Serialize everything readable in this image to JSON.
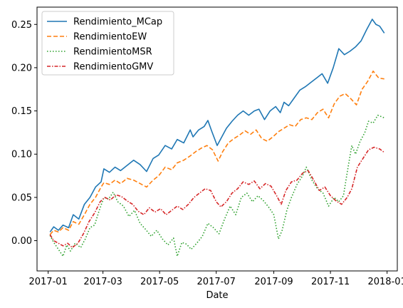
{
  "chart_data": {
    "type": "line",
    "xlabel": "Date",
    "ylabel": "",
    "xlim": [
      "2016-12-20",
      "2018-01-12"
    ],
    "ylim": [
      -0.035,
      0.27
    ],
    "x_ticks": [
      "2017-01",
      "2017-03",
      "2017-05",
      "2017-07",
      "2017-09",
      "2017-11",
      "2018-01"
    ],
    "y_ticks": [
      0.0,
      0.05,
      0.1,
      0.15,
      0.2,
      0.25
    ],
    "y_tick_labels": [
      "0.00",
      "0.05",
      "0.10",
      "0.15",
      "0.20",
      "0.25"
    ],
    "grid": false,
    "legend_position": "top-left",
    "series": [
      {
        "name": "Rendimiento_MCap",
        "color": "#1f77b4",
        "dash": "solid",
        "points": [
          [
            "2017-01-03",
            0.01
          ],
          [
            "2017-01-07",
            0.016
          ],
          [
            "2017-01-12",
            0.012
          ],
          [
            "2017-01-17",
            0.018
          ],
          [
            "2017-01-23",
            0.015
          ],
          [
            "2017-01-28",
            0.03
          ],
          [
            "2017-02-03",
            0.025
          ],
          [
            "2017-02-09",
            0.042
          ],
          [
            "2017-02-15",
            0.05
          ],
          [
            "2017-02-21",
            0.062
          ],
          [
            "2017-02-27",
            0.068
          ],
          [
            "2017-03-02",
            0.083
          ],
          [
            "2017-03-08",
            0.079
          ],
          [
            "2017-03-14",
            0.085
          ],
          [
            "2017-03-20",
            0.081
          ],
          [
            "2017-03-27",
            0.087
          ],
          [
            "2017-04-03",
            0.093
          ],
          [
            "2017-04-10",
            0.088
          ],
          [
            "2017-04-17",
            0.08
          ],
          [
            "2017-04-24",
            0.095
          ],
          [
            "2017-04-30",
            0.099
          ],
          [
            "2017-05-07",
            0.11
          ],
          [
            "2017-05-14",
            0.106
          ],
          [
            "2017-05-20",
            0.117
          ],
          [
            "2017-05-27",
            0.113
          ],
          [
            "2017-06-03",
            0.128
          ],
          [
            "2017-06-06",
            0.12
          ],
          [
            "2017-06-12",
            0.128
          ],
          [
            "2017-06-18",
            0.132
          ],
          [
            "2017-06-22",
            0.139
          ],
          [
            "2017-06-26",
            0.127
          ],
          [
            "2017-07-02",
            0.11
          ],
          [
            "2017-07-06",
            0.118
          ],
          [
            "2017-07-12",
            0.13
          ],
          [
            "2017-07-18",
            0.138
          ],
          [
            "2017-07-24",
            0.145
          ],
          [
            "2017-07-30",
            0.15
          ],
          [
            "2017-08-05",
            0.145
          ],
          [
            "2017-08-11",
            0.15
          ],
          [
            "2017-08-16",
            0.152
          ],
          [
            "2017-08-22",
            0.14
          ],
          [
            "2017-08-28",
            0.15
          ],
          [
            "2017-09-03",
            0.155
          ],
          [
            "2017-09-08",
            0.148
          ],
          [
            "2017-09-12",
            0.16
          ],
          [
            "2017-09-17",
            0.156
          ],
          [
            "2017-09-23",
            0.165
          ],
          [
            "2017-09-29",
            0.174
          ],
          [
            "2017-10-05",
            0.178
          ],
          [
            "2017-10-11",
            0.183
          ],
          [
            "2017-10-17",
            0.188
          ],
          [
            "2017-10-23",
            0.193
          ],
          [
            "2017-10-29",
            0.182
          ],
          [
            "2017-11-04",
            0.2
          ],
          [
            "2017-11-10",
            0.222
          ],
          [
            "2017-11-16",
            0.215
          ],
          [
            "2017-11-22",
            0.219
          ],
          [
            "2017-11-28",
            0.224
          ],
          [
            "2017-12-04",
            0.231
          ],
          [
            "2017-12-10",
            0.244
          ],
          [
            "2017-12-16",
            0.256
          ],
          [
            "2017-12-20",
            0.25
          ],
          [
            "2017-12-24",
            0.248
          ],
          [
            "2017-12-29",
            0.24
          ]
        ]
      },
      {
        "name": "RendimientoEW",
        "color": "#ff7f0e",
        "dash": "dashed",
        "points": [
          [
            "2017-01-03",
            0.007
          ],
          [
            "2017-01-07",
            0.012
          ],
          [
            "2017-01-12",
            0.01
          ],
          [
            "2017-01-17",
            0.015
          ],
          [
            "2017-01-23",
            0.012
          ],
          [
            "2017-01-28",
            0.022
          ],
          [
            "2017-02-03",
            0.019
          ],
          [
            "2017-02-09",
            0.03
          ],
          [
            "2017-02-15",
            0.042
          ],
          [
            "2017-02-21",
            0.05
          ],
          [
            "2017-02-27",
            0.062
          ],
          [
            "2017-03-02",
            0.067
          ],
          [
            "2017-03-08",
            0.065
          ],
          [
            "2017-03-14",
            0.07
          ],
          [
            "2017-03-20",
            0.066
          ],
          [
            "2017-03-27",
            0.072
          ],
          [
            "2017-04-03",
            0.07
          ],
          [
            "2017-04-10",
            0.066
          ],
          [
            "2017-04-17",
            0.062
          ],
          [
            "2017-04-24",
            0.07
          ],
          [
            "2017-04-30",
            0.075
          ],
          [
            "2017-05-07",
            0.085
          ],
          [
            "2017-05-14",
            0.082
          ],
          [
            "2017-05-20",
            0.09
          ],
          [
            "2017-05-27",
            0.093
          ],
          [
            "2017-06-03",
            0.098
          ],
          [
            "2017-06-09",
            0.103
          ],
          [
            "2017-06-15",
            0.107
          ],
          [
            "2017-06-21",
            0.11
          ],
          [
            "2017-06-27",
            0.105
          ],
          [
            "2017-07-03",
            0.092
          ],
          [
            "2017-07-08",
            0.103
          ],
          [
            "2017-07-14",
            0.113
          ],
          [
            "2017-07-20",
            0.118
          ],
          [
            "2017-07-26",
            0.122
          ],
          [
            "2017-08-01",
            0.127
          ],
          [
            "2017-08-07",
            0.123
          ],
          [
            "2017-08-13",
            0.128
          ],
          [
            "2017-08-19",
            0.118
          ],
          [
            "2017-08-25",
            0.115
          ],
          [
            "2017-08-31",
            0.12
          ],
          [
            "2017-09-06",
            0.126
          ],
          [
            "2017-09-12",
            0.13
          ],
          [
            "2017-09-18",
            0.134
          ],
          [
            "2017-09-24",
            0.132
          ],
          [
            "2017-09-30",
            0.14
          ],
          [
            "2017-10-06",
            0.142
          ],
          [
            "2017-10-12",
            0.14
          ],
          [
            "2017-10-18",
            0.148
          ],
          [
            "2017-10-24",
            0.152
          ],
          [
            "2017-10-30",
            0.142
          ],
          [
            "2017-11-05",
            0.158
          ],
          [
            "2017-11-11",
            0.167
          ],
          [
            "2017-11-17",
            0.17
          ],
          [
            "2017-11-23",
            0.164
          ],
          [
            "2017-11-29",
            0.157
          ],
          [
            "2017-12-05",
            0.175
          ],
          [
            "2017-12-11",
            0.184
          ],
          [
            "2017-12-17",
            0.196
          ],
          [
            "2017-12-23",
            0.188
          ],
          [
            "2017-12-29",
            0.187
          ]
        ]
      },
      {
        "name": "RendimientoMSR",
        "color": "#2ca02c",
        "dash": "dotted",
        "points": [
          [
            "2017-01-03",
            0.006
          ],
          [
            "2017-01-07",
            -0.002
          ],
          [
            "2017-01-12",
            -0.01
          ],
          [
            "2017-01-17",
            -0.018
          ],
          [
            "2017-01-21",
            -0.005
          ],
          [
            "2017-01-25",
            -0.012
          ],
          [
            "2017-01-30",
            -0.003
          ],
          [
            "2017-02-05",
            -0.008
          ],
          [
            "2017-02-10",
            0.002
          ],
          [
            "2017-02-15",
            0.015
          ],
          [
            "2017-02-20",
            0.018
          ],
          [
            "2017-02-25",
            0.035
          ],
          [
            "2017-03-02",
            0.05
          ],
          [
            "2017-03-07",
            0.048
          ],
          [
            "2017-03-12",
            0.056
          ],
          [
            "2017-03-17",
            0.045
          ],
          [
            "2017-03-23",
            0.04
          ],
          [
            "2017-03-29",
            0.028
          ],
          [
            "2017-04-04",
            0.035
          ],
          [
            "2017-04-10",
            0.02
          ],
          [
            "2017-04-16",
            0.013
          ],
          [
            "2017-04-22",
            0.005
          ],
          [
            "2017-04-28",
            0.012
          ],
          [
            "2017-05-04",
            0.002
          ],
          [
            "2017-05-10",
            -0.005
          ],
          [
            "2017-05-16",
            0.003
          ],
          [
            "2017-05-20",
            -0.018
          ],
          [
            "2017-05-25",
            -0.002
          ],
          [
            "2017-05-30",
            -0.004
          ],
          [
            "2017-06-04",
            -0.01
          ],
          [
            "2017-06-10",
            -0.003
          ],
          [
            "2017-06-16",
            0.005
          ],
          [
            "2017-06-22",
            0.02
          ],
          [
            "2017-06-28",
            0.015
          ],
          [
            "2017-07-04",
            0.008
          ],
          [
            "2017-07-10",
            0.025
          ],
          [
            "2017-07-16",
            0.04
          ],
          [
            "2017-07-22",
            0.03
          ],
          [
            "2017-07-28",
            0.05
          ],
          [
            "2017-08-03",
            0.055
          ],
          [
            "2017-08-09",
            0.045
          ],
          [
            "2017-08-15",
            0.052
          ],
          [
            "2017-08-21",
            0.046
          ],
          [
            "2017-08-27",
            0.038
          ],
          [
            "2017-09-01",
            0.03
          ],
          [
            "2017-09-06",
            0.002
          ],
          [
            "2017-09-10",
            0.012
          ],
          [
            "2017-09-15",
            0.035
          ],
          [
            "2017-09-20",
            0.05
          ],
          [
            "2017-09-26",
            0.065
          ],
          [
            "2017-10-02",
            0.075
          ],
          [
            "2017-10-06",
            0.085
          ],
          [
            "2017-10-12",
            0.07
          ],
          [
            "2017-10-18",
            0.06
          ],
          [
            "2017-10-24",
            0.055
          ],
          [
            "2017-10-30",
            0.04
          ],
          [
            "2017-11-05",
            0.05
          ],
          [
            "2017-11-10",
            0.045
          ],
          [
            "2017-11-15",
            0.052
          ],
          [
            "2017-11-20",
            0.085
          ],
          [
            "2017-11-24",
            0.11
          ],
          [
            "2017-11-28",
            0.1
          ],
          [
            "2017-12-03",
            0.115
          ],
          [
            "2017-12-08",
            0.125
          ],
          [
            "2017-12-12",
            0.138
          ],
          [
            "2017-12-17",
            0.136
          ],
          [
            "2017-12-22",
            0.145
          ],
          [
            "2017-12-29",
            0.142
          ]
        ]
      },
      {
        "name": "RendimientoGMV",
        "color": "#d62728",
        "dash": "dashdot",
        "points": [
          [
            "2017-01-03",
            0.007
          ],
          [
            "2017-01-07",
            0.0
          ],
          [
            "2017-01-12",
            -0.003
          ],
          [
            "2017-01-17",
            -0.006
          ],
          [
            "2017-01-22",
            -0.003
          ],
          [
            "2017-01-27",
            -0.008
          ],
          [
            "2017-02-02",
            -0.003
          ],
          [
            "2017-02-08",
            0.008
          ],
          [
            "2017-02-14",
            0.022
          ],
          [
            "2017-02-20",
            0.032
          ],
          [
            "2017-02-26",
            0.045
          ],
          [
            "2017-03-03",
            0.05
          ],
          [
            "2017-03-09",
            0.047
          ],
          [
            "2017-03-15",
            0.053
          ],
          [
            "2017-03-21",
            0.051
          ],
          [
            "2017-03-27",
            0.046
          ],
          [
            "2017-04-02",
            0.042
          ],
          [
            "2017-04-08",
            0.034
          ],
          [
            "2017-04-14",
            0.03
          ],
          [
            "2017-04-20",
            0.038
          ],
          [
            "2017-04-26",
            0.033
          ],
          [
            "2017-05-02",
            0.037
          ],
          [
            "2017-05-08",
            0.03
          ],
          [
            "2017-05-14",
            0.035
          ],
          [
            "2017-05-20",
            0.04
          ],
          [
            "2017-05-26",
            0.036
          ],
          [
            "2017-06-01",
            0.042
          ],
          [
            "2017-06-07",
            0.05
          ],
          [
            "2017-06-13",
            0.055
          ],
          [
            "2017-06-19",
            0.06
          ],
          [
            "2017-06-25",
            0.058
          ],
          [
            "2017-07-01",
            0.045
          ],
          [
            "2017-07-06",
            0.039
          ],
          [
            "2017-07-12",
            0.045
          ],
          [
            "2017-07-18",
            0.055
          ],
          [
            "2017-07-24",
            0.06
          ],
          [
            "2017-07-30",
            0.068
          ],
          [
            "2017-08-05",
            0.065
          ],
          [
            "2017-08-11",
            0.069
          ],
          [
            "2017-08-17",
            0.06
          ],
          [
            "2017-08-23",
            0.066
          ],
          [
            "2017-08-29",
            0.063
          ],
          [
            "2017-09-04",
            0.052
          ],
          [
            "2017-09-09",
            0.042
          ],
          [
            "2017-09-14",
            0.058
          ],
          [
            "2017-09-20",
            0.068
          ],
          [
            "2017-09-26",
            0.07
          ],
          [
            "2017-10-02",
            0.078
          ],
          [
            "2017-10-08",
            0.081
          ],
          [
            "2017-10-14",
            0.07
          ],
          [
            "2017-10-20",
            0.058
          ],
          [
            "2017-10-26",
            0.062
          ],
          [
            "2017-11-01",
            0.052
          ],
          [
            "2017-11-07",
            0.046
          ],
          [
            "2017-11-13",
            0.042
          ],
          [
            "2017-11-19",
            0.05
          ],
          [
            "2017-11-24",
            0.06
          ],
          [
            "2017-11-30",
            0.085
          ],
          [
            "2017-12-06",
            0.095
          ],
          [
            "2017-12-12",
            0.105
          ],
          [
            "2017-12-18",
            0.108
          ],
          [
            "2017-12-24",
            0.106
          ],
          [
            "2017-12-29",
            0.102
          ]
        ]
      }
    ]
  }
}
